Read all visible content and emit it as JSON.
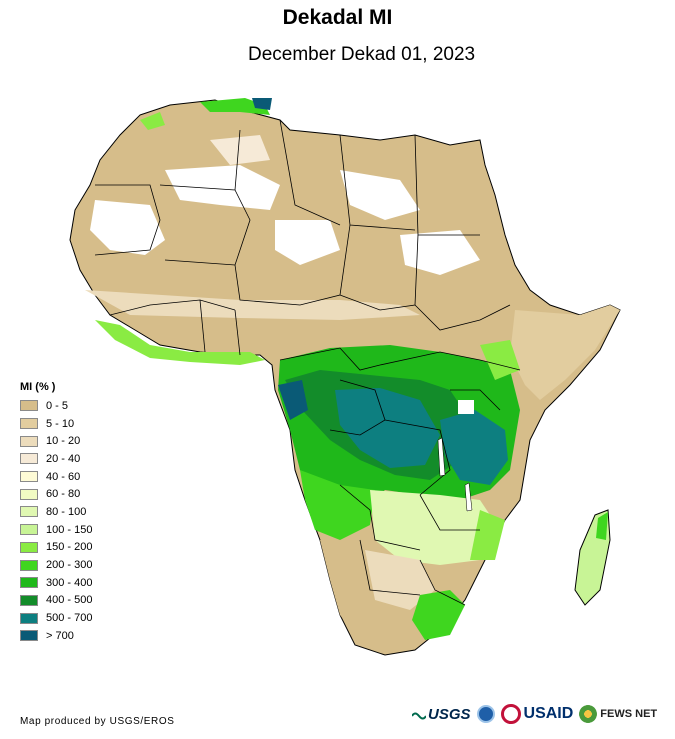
{
  "title": "Dekadal MI",
  "subtitle": "December Dekad 01, 2023",
  "legend": {
    "title": "MI (% )",
    "items": [
      {
        "label": "0 - 5",
        "color": "#d6bd8a"
      },
      {
        "label": "5 - 10",
        "color": "#e2cd9f"
      },
      {
        "label": "10 - 20",
        "color": "#ecdcbc"
      },
      {
        "label": "20 - 40",
        "color": "#f6ead7"
      },
      {
        "label": "40 - 60",
        "color": "#fefbd6"
      },
      {
        "label": "60 - 80",
        "color": "#f1fbc3"
      },
      {
        "label": "80 - 100",
        "color": "#e0f8b2"
      },
      {
        "label": "100 - 150",
        "color": "#c8f496"
      },
      {
        "label": "150 - 200",
        "color": "#8aeb43"
      },
      {
        "label": "200 - 300",
        "color": "#3fd61f"
      },
      {
        "label": "300 - 400",
        "color": "#1fb81a"
      },
      {
        "label": "400 - 500",
        "color": "#138c2a"
      },
      {
        "label": "500 - 700",
        "color": "#0d7f80"
      },
      {
        "label": "> 700",
        "color": "#0a5a76"
      }
    ]
  },
  "credit": "Map produced by USGS/EROS",
  "logos": {
    "usgs": "USGS",
    "usaid": "USAID",
    "fews": "FEWS NET"
  }
}
